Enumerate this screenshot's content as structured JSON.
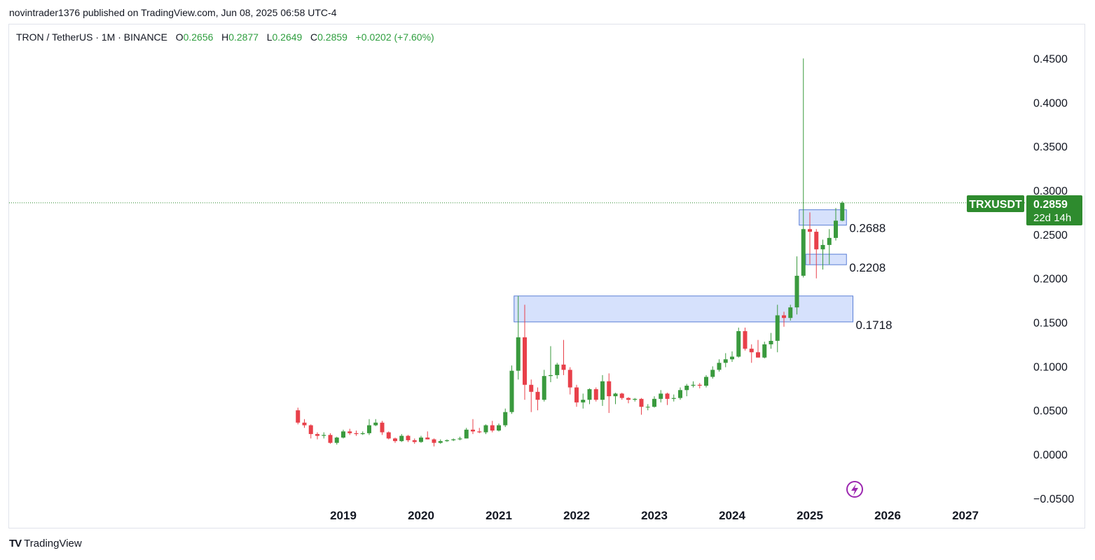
{
  "publisher_line": "novintrader1376 published on TradingView.com, Jun 08, 2025 06:58 UTC-4",
  "legend": {
    "symbol": "TRON / TetherUS · 1M · BINANCE",
    "open_label": "O",
    "open": "0.2656",
    "high_label": "H",
    "high": "0.2877",
    "low_label": "L",
    "low": "0.2649",
    "close_label": "C",
    "close": "0.2859",
    "change": "+0.0202 (+7.60%)"
  },
  "price_tag": {
    "ticker": "TRXUSDT",
    "price": "0.2859",
    "countdown": "22d 14h"
  },
  "footer": {
    "brand": "TradingView",
    "logo": "TV"
  },
  "colors": {
    "up": "#3a9a3e",
    "down": "#e8404a",
    "zone_fill": "#cfdcfb",
    "zone_border": "#5a7fd6",
    "tag": "#2e8b2e",
    "alert_icon": "#9c27b0"
  },
  "icons": {
    "alert": "lightning-bolt-circle-icon"
  },
  "chart_data": {
    "type": "candlestick",
    "title": "TRON / TetherUS · 1M · BINANCE",
    "xlabel": "",
    "ylabel": "",
    "ylim": [
      -0.05,
      0.46
    ],
    "y_ticks": [
      "0.4500",
      "0.4000",
      "0.3500",
      "0.3000",
      "0.2500",
      "0.2000",
      "0.1500",
      "0.1000",
      "0.0500",
      "0.0000",
      "−0.0500"
    ],
    "y_tick_values": [
      0.45,
      0.4,
      0.35,
      0.3,
      0.25,
      0.2,
      0.15,
      0.1,
      0.05,
      0.0,
      -0.05
    ],
    "x_ticks": [
      "2019",
      "2020",
      "2021",
      "2022",
      "2023",
      "2024",
      "2025",
      "2026",
      "2027"
    ],
    "x_range": [
      "2018-01",
      "2027-08"
    ],
    "grid": false,
    "last_price": 0.2859,
    "zones": [
      {
        "label": "0.2688",
        "from": "2024-12",
        "to": "2025-06",
        "low": 0.2605,
        "high": 0.278
      },
      {
        "label": "0.2208",
        "from": "2025-01",
        "to": "2025-06",
        "low": 0.2155,
        "high": 0.2275
      },
      {
        "label": "0.1718",
        "from": "2021-04",
        "to": "2025-07",
        "low": 0.1505,
        "high": 0.18
      }
    ],
    "candles": [
      {
        "t": "2018-06",
        "o": 0.05,
        "h": 0.053,
        "l": 0.034,
        "c": 0.036
      },
      {
        "t": "2018-07",
        "o": 0.036,
        "h": 0.04,
        "l": 0.03,
        "c": 0.033
      },
      {
        "t": "2018-08",
        "o": 0.033,
        "h": 0.034,
        "l": 0.018,
        "c": 0.023
      },
      {
        "t": "2018-09",
        "o": 0.023,
        "h": 0.025,
        "l": 0.017,
        "c": 0.021
      },
      {
        "t": "2018-10",
        "o": 0.021,
        "h": 0.025,
        "l": 0.018,
        "c": 0.022
      },
      {
        "t": "2018-11",
        "o": 0.022,
        "h": 0.024,
        "l": 0.012,
        "c": 0.013
      },
      {
        "t": "2018-12",
        "o": 0.013,
        "h": 0.02,
        "l": 0.011,
        "c": 0.019
      },
      {
        "t": "2019-01",
        "o": 0.019,
        "h": 0.028,
        "l": 0.018,
        "c": 0.026
      },
      {
        "t": "2019-02",
        "o": 0.026,
        "h": 0.029,
        "l": 0.022,
        "c": 0.024
      },
      {
        "t": "2019-03",
        "o": 0.024,
        "h": 0.027,
        "l": 0.021,
        "c": 0.023
      },
      {
        "t": "2019-04",
        "o": 0.023,
        "h": 0.026,
        "l": 0.022,
        "c": 0.024
      },
      {
        "t": "2019-05",
        "o": 0.024,
        "h": 0.04,
        "l": 0.022,
        "c": 0.033
      },
      {
        "t": "2019-06",
        "o": 0.033,
        "h": 0.04,
        "l": 0.032,
        "c": 0.036
      },
      {
        "t": "2019-07",
        "o": 0.036,
        "h": 0.038,
        "l": 0.022,
        "c": 0.025
      },
      {
        "t": "2019-08",
        "o": 0.025,
        "h": 0.026,
        "l": 0.017,
        "c": 0.018
      },
      {
        "t": "2019-09",
        "o": 0.018,
        "h": 0.019,
        "l": 0.013,
        "c": 0.015
      },
      {
        "t": "2019-10",
        "o": 0.015,
        "h": 0.023,
        "l": 0.014,
        "c": 0.021
      },
      {
        "t": "2019-11",
        "o": 0.021,
        "h": 0.022,
        "l": 0.014,
        "c": 0.016
      },
      {
        "t": "2019-12",
        "o": 0.016,
        "h": 0.018,
        "l": 0.012,
        "c": 0.014
      },
      {
        "t": "2020-01",
        "o": 0.014,
        "h": 0.021,
        "l": 0.013,
        "c": 0.019
      },
      {
        "t": "2020-02",
        "o": 0.019,
        "h": 0.026,
        "l": 0.017,
        "c": 0.017
      },
      {
        "t": "2020-03",
        "o": 0.017,
        "h": 0.018,
        "l": 0.009,
        "c": 0.013
      },
      {
        "t": "2020-04",
        "o": 0.013,
        "h": 0.017,
        "l": 0.012,
        "c": 0.015
      },
      {
        "t": "2020-05",
        "o": 0.015,
        "h": 0.017,
        "l": 0.014,
        "c": 0.016
      },
      {
        "t": "2020-06",
        "o": 0.016,
        "h": 0.018,
        "l": 0.015,
        "c": 0.017
      },
      {
        "t": "2020-07",
        "o": 0.017,
        "h": 0.02,
        "l": 0.016,
        "c": 0.018
      },
      {
        "t": "2020-08",
        "o": 0.018,
        "h": 0.03,
        "l": 0.018,
        "c": 0.028
      },
      {
        "t": "2020-09",
        "o": 0.028,
        "h": 0.04,
        "l": 0.023,
        "c": 0.026
      },
      {
        "t": "2020-10",
        "o": 0.026,
        "h": 0.03,
        "l": 0.024,
        "c": 0.025
      },
      {
        "t": "2020-11",
        "o": 0.025,
        "h": 0.034,
        "l": 0.023,
        "c": 0.033
      },
      {
        "t": "2020-12",
        "o": 0.033,
        "h": 0.038,
        "l": 0.025,
        "c": 0.027
      },
      {
        "t": "2021-01",
        "o": 0.027,
        "h": 0.035,
        "l": 0.026,
        "c": 0.033
      },
      {
        "t": "2021-02",
        "o": 0.033,
        "h": 0.052,
        "l": 0.031,
        "c": 0.048
      },
      {
        "t": "2021-03",
        "o": 0.048,
        "h": 0.101,
        "l": 0.046,
        "c": 0.095
      },
      {
        "t": "2021-04",
        "o": 0.095,
        "h": 0.18,
        "l": 0.085,
        "c": 0.133
      },
      {
        "t": "2021-05",
        "o": 0.133,
        "h": 0.17,
        "l": 0.062,
        "c": 0.079
      },
      {
        "t": "2021-06",
        "o": 0.079,
        "h": 0.085,
        "l": 0.048,
        "c": 0.071
      },
      {
        "t": "2021-07",
        "o": 0.071,
        "h": 0.076,
        "l": 0.05,
        "c": 0.062
      },
      {
        "t": "2021-08",
        "o": 0.062,
        "h": 0.096,
        "l": 0.06,
        "c": 0.089
      },
      {
        "t": "2021-09",
        "o": 0.089,
        "h": 0.123,
        "l": 0.082,
        "c": 0.09
      },
      {
        "t": "2021-10",
        "o": 0.09,
        "h": 0.104,
        "l": 0.086,
        "c": 0.102
      },
      {
        "t": "2021-11",
        "o": 0.102,
        "h": 0.13,
        "l": 0.09,
        "c": 0.096
      },
      {
        "t": "2021-12",
        "o": 0.096,
        "h": 0.099,
        "l": 0.068,
        "c": 0.076
      },
      {
        "t": "2022-01",
        "o": 0.076,
        "h": 0.079,
        "l": 0.054,
        "c": 0.059
      },
      {
        "t": "2022-02",
        "o": 0.059,
        "h": 0.069,
        "l": 0.052,
        "c": 0.062
      },
      {
        "t": "2022-03",
        "o": 0.062,
        "h": 0.075,
        "l": 0.057,
        "c": 0.074
      },
      {
        "t": "2022-04",
        "o": 0.074,
        "h": 0.076,
        "l": 0.06,
        "c": 0.062
      },
      {
        "t": "2022-05",
        "o": 0.062,
        "h": 0.09,
        "l": 0.055,
        "c": 0.083
      },
      {
        "t": "2022-06",
        "o": 0.083,
        "h": 0.092,
        "l": 0.047,
        "c": 0.066
      },
      {
        "t": "2022-07",
        "o": 0.066,
        "h": 0.07,
        "l": 0.057,
        "c": 0.069
      },
      {
        "t": "2022-08",
        "o": 0.069,
        "h": 0.07,
        "l": 0.062,
        "c": 0.064
      },
      {
        "t": "2022-09",
        "o": 0.064,
        "h": 0.065,
        "l": 0.058,
        "c": 0.062
      },
      {
        "t": "2022-10",
        "o": 0.062,
        "h": 0.064,
        "l": 0.06,
        "c": 0.063
      },
      {
        "t": "2022-11",
        "o": 0.063,
        "h": 0.064,
        "l": 0.045,
        "c": 0.054
      },
      {
        "t": "2022-12",
        "o": 0.054,
        "h": 0.057,
        "l": 0.05,
        "c": 0.054
      },
      {
        "t": "2023-01",
        "o": 0.054,
        "h": 0.066,
        "l": 0.053,
        "c": 0.063
      },
      {
        "t": "2023-02",
        "o": 0.063,
        "h": 0.073,
        "l": 0.059,
        "c": 0.069
      },
      {
        "t": "2023-03",
        "o": 0.069,
        "h": 0.07,
        "l": 0.056,
        "c": 0.063
      },
      {
        "t": "2023-04",
        "o": 0.063,
        "h": 0.068,
        "l": 0.06,
        "c": 0.064
      },
      {
        "t": "2023-05",
        "o": 0.064,
        "h": 0.076,
        "l": 0.062,
        "c": 0.073
      },
      {
        "t": "2023-06",
        "o": 0.073,
        "h": 0.08,
        "l": 0.066,
        "c": 0.078
      },
      {
        "t": "2023-07",
        "o": 0.078,
        "h": 0.083,
        "l": 0.076,
        "c": 0.079
      },
      {
        "t": "2023-08",
        "o": 0.079,
        "h": 0.081,
        "l": 0.075,
        "c": 0.078
      },
      {
        "t": "2023-09",
        "o": 0.078,
        "h": 0.09,
        "l": 0.076,
        "c": 0.088
      },
      {
        "t": "2023-10",
        "o": 0.088,
        "h": 0.1,
        "l": 0.086,
        "c": 0.096
      },
      {
        "t": "2023-11",
        "o": 0.096,
        "h": 0.108,
        "l": 0.094,
        "c": 0.104
      },
      {
        "t": "2023-12",
        "o": 0.104,
        "h": 0.115,
        "l": 0.099,
        "c": 0.108
      },
      {
        "t": "2024-01",
        "o": 0.108,
        "h": 0.117,
        "l": 0.105,
        "c": 0.111
      },
      {
        "t": "2024-02",
        "o": 0.111,
        "h": 0.144,
        "l": 0.11,
        "c": 0.14
      },
      {
        "t": "2024-03",
        "o": 0.14,
        "h": 0.144,
        "l": 0.118,
        "c": 0.12
      },
      {
        "t": "2024-04",
        "o": 0.12,
        "h": 0.125,
        "l": 0.104,
        "c": 0.116
      },
      {
        "t": "2024-05",
        "o": 0.116,
        "h": 0.13,
        "l": 0.11,
        "c": 0.11
      },
      {
        "t": "2024-06",
        "o": 0.11,
        "h": 0.128,
        "l": 0.109,
        "c": 0.125
      },
      {
        "t": "2024-07",
        "o": 0.125,
        "h": 0.138,
        "l": 0.12,
        "c": 0.129
      },
      {
        "t": "2024-08",
        "o": 0.129,
        "h": 0.17,
        "l": 0.116,
        "c": 0.158
      },
      {
        "t": "2024-09",
        "o": 0.158,
        "h": 0.162,
        "l": 0.145,
        "c": 0.155
      },
      {
        "t": "2024-10",
        "o": 0.155,
        "h": 0.17,
        "l": 0.152,
        "c": 0.167
      },
      {
        "t": "2024-11",
        "o": 0.167,
        "h": 0.225,
        "l": 0.159,
        "c": 0.203
      },
      {
        "t": "2024-12",
        "o": 0.203,
        "h": 0.45,
        "l": 0.201,
        "c": 0.256
      },
      {
        "t": "2025-01",
        "o": 0.256,
        "h": 0.275,
        "l": 0.216,
        "c": 0.253
      },
      {
        "t": "2025-02",
        "o": 0.253,
        "h": 0.256,
        "l": 0.2,
        "c": 0.233
      },
      {
        "t": "2025-03",
        "o": 0.233,
        "h": 0.244,
        "l": 0.21,
        "c": 0.238
      },
      {
        "t": "2025-04",
        "o": 0.238,
        "h": 0.256,
        "l": 0.216,
        "c": 0.246
      },
      {
        "t": "2025-05",
        "o": 0.246,
        "h": 0.28,
        "l": 0.243,
        "c": 0.2656
      },
      {
        "t": "2025-06",
        "o": 0.2656,
        "h": 0.2877,
        "l": 0.2649,
        "c": 0.2859
      }
    ]
  }
}
